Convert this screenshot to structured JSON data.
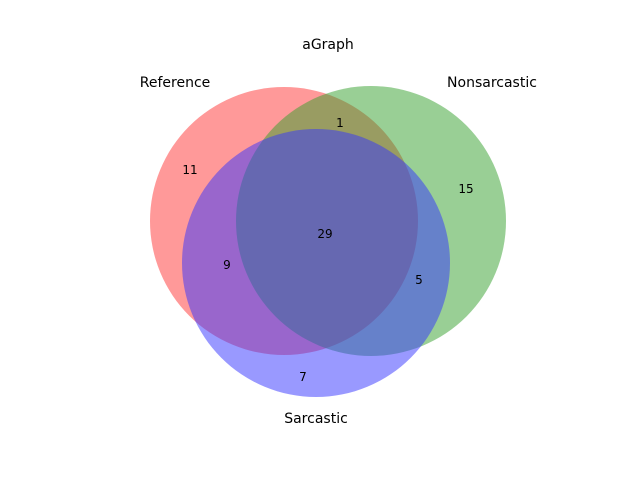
{
  "title": "aGraph",
  "sets": [
    {
      "name": "Reference",
      "color": "#ff3333",
      "opacity": 0.5
    },
    {
      "name": "Nonsarcastic",
      "color": "#33a02c",
      "opacity": 0.5
    },
    {
      "name": "Sarcastic",
      "color": "#3333ff",
      "opacity": 0.5
    }
  ],
  "regions": {
    "reference_only": "11",
    "nonsarcastic_only": "15",
    "sarcastic_only": "7",
    "reference_nonsarcastic": "1",
    "reference_sarcastic": "9",
    "nonsarcastic_sarcastic": "5",
    "all_three": "29"
  }
}
